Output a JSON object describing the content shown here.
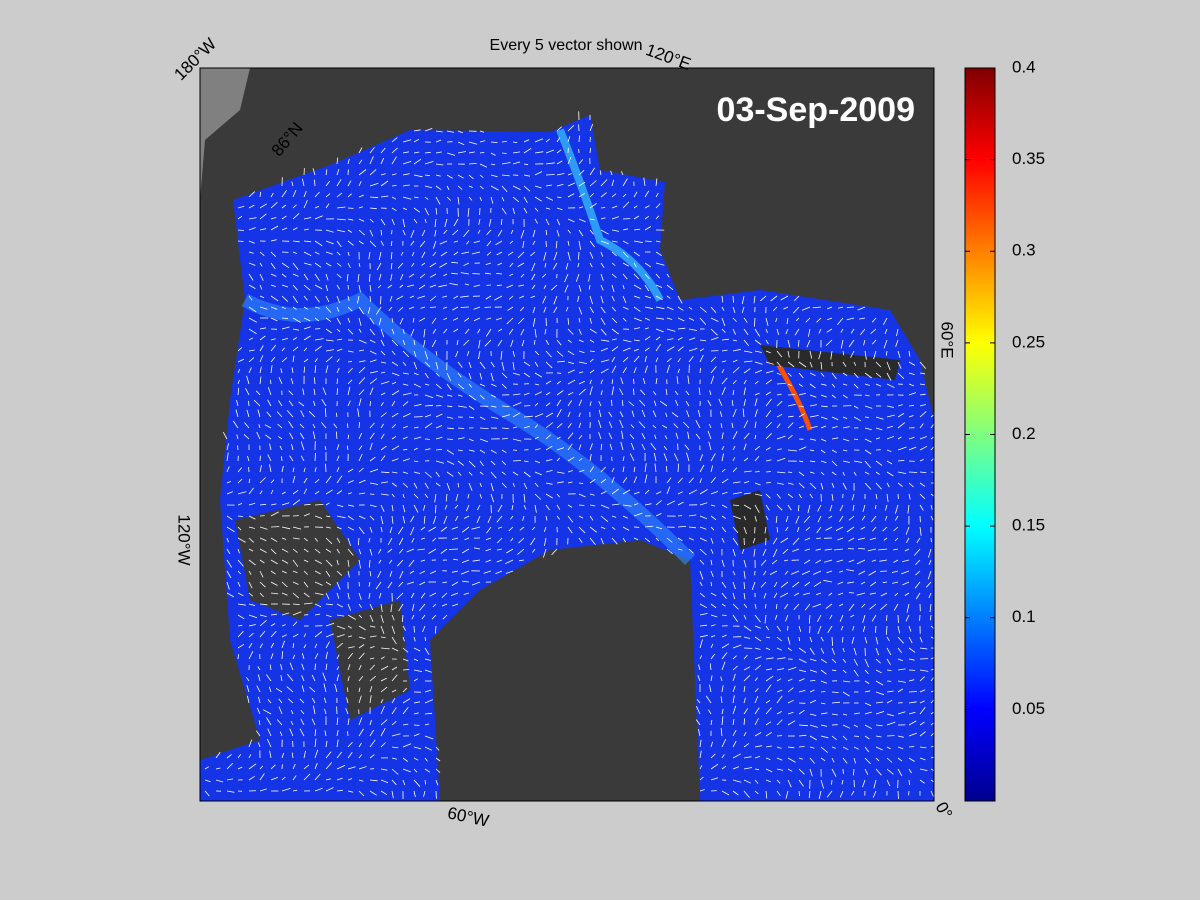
{
  "map": {
    "title": "Every 5 vector shown",
    "date": "03-Sep-2009",
    "labels": [
      "180°W",
      "120°E",
      "86°N",
      "60°E",
      "0°",
      "60°W",
      "120°W"
    ]
  },
  "colorbar": {
    "ylim": [
      0,
      0.4
    ],
    "yticks": [
      0.05,
      0.1,
      0.15,
      0.2,
      0.25,
      0.3,
      0.35,
      0.4
    ]
  }
}
